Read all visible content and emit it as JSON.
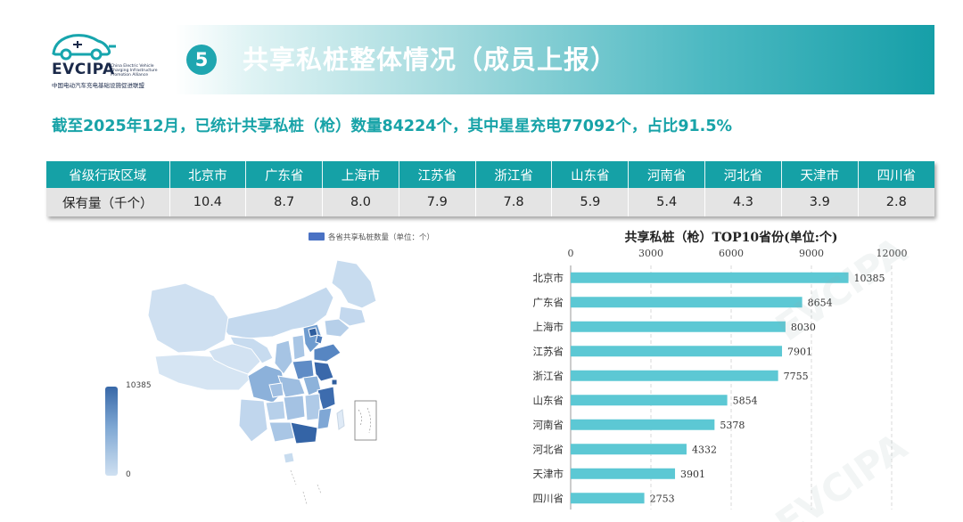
{
  "header": {
    "logo_text": "EVCIPA",
    "logo_small": "China Electric Vehicle Charging Infrastructure Promotion Alliance",
    "logo_sub": "中国电动汽车充电基础设施促进联盟",
    "section_number": "5",
    "title": "共享私桩整体情况（成员上报）"
  },
  "summary": "截至2025年12月，已统计共享私桩（枪）数量84224个，其中星星充电77092个，占比91.5%",
  "table": {
    "header_label": "省级行政区域",
    "row_label": "保有量（千个）",
    "columns": [
      "北京市",
      "广东省",
      "上海市",
      "江苏省",
      "浙江省",
      "山东省",
      "河南省",
      "河北省",
      "天津市",
      "四川省"
    ],
    "values": [
      "10.4",
      "8.7",
      "8.0",
      "7.9",
      "7.8",
      "5.9",
      "5.4",
      "4.3",
      "3.9",
      "2.8"
    ]
  },
  "map": {
    "legend_label": "各省共享私桩数量（单位：个）",
    "legend_color": "#4a72c4",
    "visual_max": "10385",
    "visual_min": "0"
  },
  "chart_data": {
    "type": "bar",
    "orientation": "horizontal",
    "title": "共享私桩（枪）TOP10省份(单位:个)",
    "categories": [
      "北京市",
      "广东省",
      "上海市",
      "江苏省",
      "浙江省",
      "山东省",
      "河南省",
      "河北省",
      "天津市",
      "四川省"
    ],
    "values": [
      10385,
      8654,
      8030,
      7901,
      7755,
      5854,
      5378,
      4332,
      3901,
      2753
    ],
    "xlim": [
      0,
      12000
    ],
    "xticks": [
      "0",
      "3000",
      "6000",
      "9000",
      "12000"
    ],
    "grid": true,
    "bar_color": "#5cc8d4"
  }
}
